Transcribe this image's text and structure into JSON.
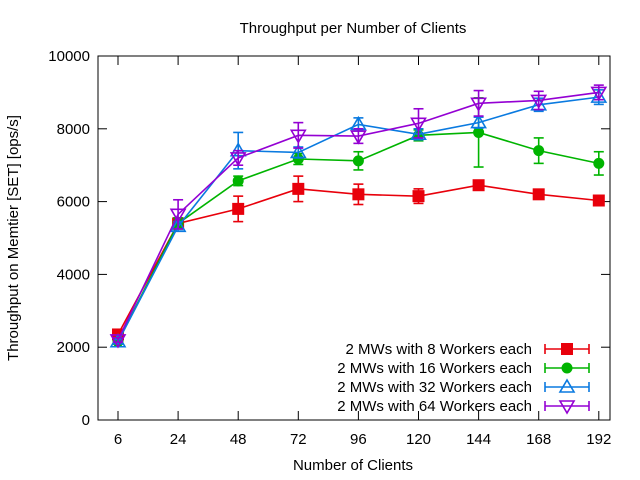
{
  "chart_data": {
    "type": "line",
    "title": "Throughput per Number of Clients",
    "xlabel": "Number of Clients",
    "ylabel": "Throughput on Memtier [SET] [ops/s]",
    "categories": [
      "6",
      "24",
      "48",
      "72",
      "96",
      "120",
      "144",
      "168",
      "192"
    ],
    "ylim": [
      0,
      10000
    ],
    "yticks": [
      0,
      2000,
      4000,
      6000,
      8000,
      10000
    ],
    "grid": false,
    "legend_position": "bottom-right",
    "error_bars": true,
    "series": [
      {
        "name": "2 MWs with 8 Workers each",
        "color": "#e8000b",
        "marker": "filled-square",
        "values": [
          2350,
          5400,
          5800,
          6350,
          6200,
          6150,
          6450,
          6200,
          6030
        ],
        "errors": [
          80,
          150,
          350,
          350,
          280,
          200,
          100,
          120,
          80
        ]
      },
      {
        "name": "2 MWs with 16 Workers each",
        "color": "#00b400",
        "marker": "filled-circle",
        "values": [
          2150,
          5400,
          6570,
          7170,
          7120,
          7820,
          7900,
          7400,
          7050
        ],
        "errors": [
          60,
          150,
          130,
          150,
          250,
          150,
          950,
          350,
          320
        ]
      },
      {
        "name": "2 MWs with 32 Workers each",
        "color": "#0a7ae0",
        "marker": "open-triangle-up",
        "values": [
          2150,
          5320,
          7400,
          7350,
          8120,
          7850,
          8170,
          8660,
          8870
        ],
        "errors": [
          60,
          130,
          500,
          150,
          180,
          150,
          150,
          180,
          200
        ]
      },
      {
        "name": "2 MWs with 64 Workers each",
        "color": "#9400d3",
        "marker": "open-triangle-down",
        "values": [
          2200,
          5650,
          7200,
          7820,
          7800,
          8150,
          8700,
          8780,
          9000
        ],
        "errors": [
          60,
          400,
          200,
          350,
          200,
          400,
          350,
          250,
          200
        ]
      }
    ]
  }
}
